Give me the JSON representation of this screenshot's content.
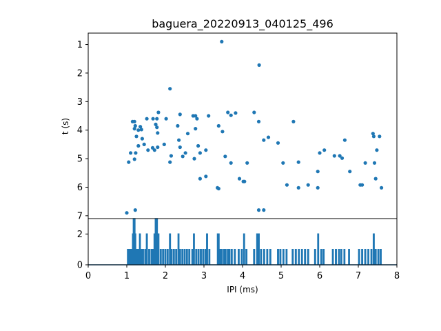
{
  "chart_data": [
    {
      "type": "scatter",
      "title": "baguera_20220913_040125_496",
      "xlabel": "",
      "ylabel": "t (s)",
      "xlim": [
        0,
        8
      ],
      "ylim": [
        7.1,
        0.6
      ],
      "y_inverted": true,
      "yticks": [
        1,
        2,
        3,
        4,
        5,
        6,
        7
      ],
      "color": "#1f77b4",
      "points": [
        [
          3.46,
          0.9
        ],
        [
          4.43,
          1.72
        ],
        [
          2.12,
          2.55
        ],
        [
          1.15,
          3.7
        ],
        [
          1.2,
          3.7
        ],
        [
          1.22,
          3.85
        ],
        [
          1.2,
          3.95
        ],
        [
          1.3,
          4.0
        ],
        [
          1.35,
          3.88
        ],
        [
          1.38,
          3.98
        ],
        [
          1.52,
          3.6
        ],
        [
          1.68,
          3.6
        ],
        [
          1.78,
          3.6
        ],
        [
          1.82,
          3.38
        ],
        [
          1.75,
          3.8
        ],
        [
          1.78,
          3.9
        ],
        [
          1.8,
          4.1
        ],
        [
          2.02,
          3.6
        ],
        [
          1.25,
          4.22
        ],
        [
          1.4,
          4.3
        ],
        [
          1.45,
          4.5
        ],
        [
          1.55,
          4.7
        ],
        [
          1.3,
          4.55
        ],
        [
          1.1,
          4.8
        ],
        [
          1.23,
          4.8
        ],
        [
          1.05,
          5.12
        ],
        [
          1.2,
          5.02
        ],
        [
          1.67,
          4.62
        ],
        [
          1.72,
          4.7
        ],
        [
          1.8,
          4.6
        ],
        [
          1.97,
          4.5
        ],
        [
          2.15,
          4.9
        ],
        [
          2.12,
          5.12
        ],
        [
          2.35,
          4.35
        ],
        [
          2.38,
          4.6
        ],
        [
          2.32,
          3.85
        ],
        [
          2.38,
          3.45
        ],
        [
          2.45,
          4.92
        ],
        [
          2.52,
          4.8
        ],
        [
          2.58,
          4.12
        ],
        [
          2.72,
          3.5
        ],
        [
          2.78,
          3.5
        ],
        [
          2.82,
          3.6
        ],
        [
          2.78,
          3.95
        ],
        [
          2.85,
          4.55
        ],
        [
          2.9,
          4.8
        ],
        [
          2.75,
          5.0
        ],
        [
          2.9,
          5.7
        ],
        [
          3.05,
          5.62
        ],
        [
          3.05,
          4.7
        ],
        [
          3.12,
          3.5
        ],
        [
          3.35,
          6.02
        ],
        [
          3.38,
          6.05
        ],
        [
          3.38,
          3.85
        ],
        [
          3.48,
          4.05
        ],
        [
          3.55,
          4.92
        ],
        [
          3.62,
          3.38
        ],
        [
          3.7,
          3.48
        ],
        [
          3.82,
          3.4
        ],
        [
          3.7,
          5.15
        ],
        [
          3.92,
          5.7
        ],
        [
          4.02,
          5.8
        ],
        [
          4.05,
          5.8
        ],
        [
          4.12,
          5.15
        ],
        [
          4.3,
          3.38
        ],
        [
          4.42,
          3.7
        ],
        [
          4.55,
          4.35
        ],
        [
          4.67,
          4.25
        ],
        [
          4.42,
          6.8
        ],
        [
          4.55,
          6.8
        ],
        [
          4.92,
          4.45
        ],
        [
          5.05,
          5.15
        ],
        [
          5.15,
          5.92
        ],
        [
          5.32,
          3.7
        ],
        [
          5.45,
          6.02
        ],
        [
          5.45,
          5.12
        ],
        [
          5.7,
          5.92
        ],
        [
          5.95,
          6.02
        ],
        [
          5.95,
          5.45
        ],
        [
          6.0,
          4.8
        ],
        [
          6.12,
          4.7
        ],
        [
          6.38,
          4.9
        ],
        [
          6.52,
          4.9
        ],
        [
          6.58,
          4.98
        ],
        [
          6.65,
          4.35
        ],
        [
          6.78,
          5.45
        ],
        [
          7.05,
          5.92
        ],
        [
          7.1,
          5.92
        ],
        [
          7.18,
          5.15
        ],
        [
          7.38,
          4.12
        ],
        [
          7.4,
          4.22
        ],
        [
          7.42,
          5.15
        ],
        [
          7.45,
          5.7
        ],
        [
          7.48,
          4.7
        ],
        [
          7.55,
          4.22
        ],
        [
          7.6,
          6.02
        ],
        [
          1.22,
          6.8
        ],
        [
          1.0,
          6.9
        ]
      ]
    },
    {
      "type": "line",
      "title": "",
      "xlabel": "IPI (ms)",
      "ylabel": "",
      "xlim": [
        0,
        8
      ],
      "ylim": [
        0,
        3
      ],
      "xticks": [
        0,
        1,
        2,
        3,
        4,
        5,
        6,
        7,
        8
      ],
      "yticks": [
        0,
        2
      ],
      "color": "#1f77b4",
      "spikes": [
        [
          1.03,
          1
        ],
        [
          1.08,
          1
        ],
        [
          1.12,
          1
        ],
        [
          1.16,
          2
        ],
        [
          1.18,
          3
        ],
        [
          1.2,
          3
        ],
        [
          1.22,
          2
        ],
        [
          1.26,
          1
        ],
        [
          1.3,
          1
        ],
        [
          1.34,
          2
        ],
        [
          1.38,
          1
        ],
        [
          1.42,
          1
        ],
        [
          1.48,
          1
        ],
        [
          1.52,
          2
        ],
        [
          1.58,
          1
        ],
        [
          1.64,
          1
        ],
        [
          1.68,
          1
        ],
        [
          1.72,
          2
        ],
        [
          1.75,
          3
        ],
        [
          1.78,
          3
        ],
        [
          1.82,
          2
        ],
        [
          1.88,
          1
        ],
        [
          1.94,
          1
        ],
        [
          2.0,
          1
        ],
        [
          2.06,
          1
        ],
        [
          2.12,
          2
        ],
        [
          2.16,
          1
        ],
        [
          2.22,
          1
        ],
        [
          2.28,
          1
        ],
        [
          2.34,
          2
        ],
        [
          2.38,
          1
        ],
        [
          2.44,
          1
        ],
        [
          2.5,
          1
        ],
        [
          2.56,
          1
        ],
        [
          2.62,
          1
        ],
        [
          2.7,
          1
        ],
        [
          2.74,
          2
        ],
        [
          2.8,
          1
        ],
        [
          2.86,
          1
        ],
        [
          2.92,
          1
        ],
        [
          2.98,
          1
        ],
        [
          3.04,
          1
        ],
        [
          3.08,
          2
        ],
        [
          3.14,
          1
        ],
        [
          3.36,
          2
        ],
        [
          3.38,
          2
        ],
        [
          3.42,
          1
        ],
        [
          3.46,
          1
        ],
        [
          3.52,
          1
        ],
        [
          3.56,
          1
        ],
        [
          3.62,
          1
        ],
        [
          3.66,
          1
        ],
        [
          3.72,
          1
        ],
        [
          3.8,
          1
        ],
        [
          3.9,
          1
        ],
        [
          3.98,
          1
        ],
        [
          4.04,
          2
        ],
        [
          4.1,
          1
        ],
        [
          4.3,
          1
        ],
        [
          4.38,
          2
        ],
        [
          4.42,
          2
        ],
        [
          4.48,
          1
        ],
        [
          4.56,
          1
        ],
        [
          4.64,
          1
        ],
        [
          4.72,
          1
        ],
        [
          4.92,
          1
        ],
        [
          4.98,
          1
        ],
        [
          5.06,
          1
        ],
        [
          5.14,
          1
        ],
        [
          5.3,
          1
        ],
        [
          5.38,
          1
        ],
        [
          5.46,
          1
        ],
        [
          5.54,
          1
        ],
        [
          5.62,
          1
        ],
        [
          5.7,
          1
        ],
        [
          5.88,
          1
        ],
        [
          5.96,
          2
        ],
        [
          6.04,
          1
        ],
        [
          6.1,
          1
        ],
        [
          6.34,
          1
        ],
        [
          6.42,
          1
        ],
        [
          6.5,
          1
        ],
        [
          6.56,
          1
        ],
        [
          6.64,
          1
        ],
        [
          6.76,
          1
        ],
        [
          7.02,
          1
        ],
        [
          7.1,
          1
        ],
        [
          7.18,
          1
        ],
        [
          7.26,
          1
        ],
        [
          7.34,
          1
        ],
        [
          7.4,
          2
        ],
        [
          7.45,
          1
        ],
        [
          7.52,
          1
        ],
        [
          7.58,
          1
        ]
      ]
    }
  ]
}
